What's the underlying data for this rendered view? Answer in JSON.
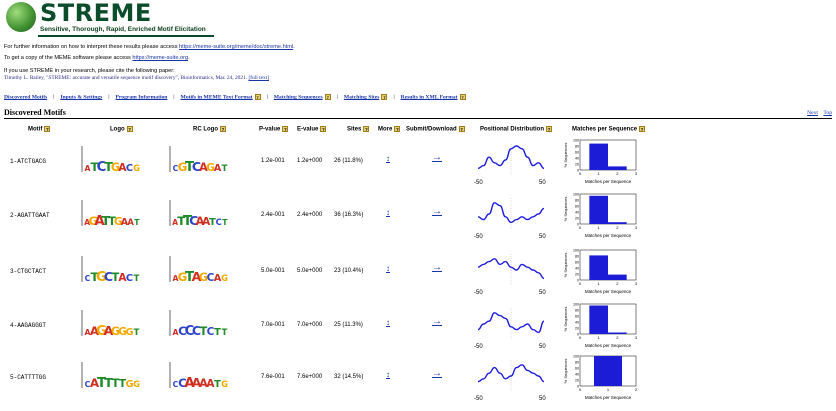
{
  "header": {
    "title": "STREME",
    "subtitle": "Sensitive, Thorough, Rapid, Enriched Motif Elicitation"
  },
  "info": {
    "line1_prefix": "For further information on how to interpret these results please access ",
    "line1_link": "https://meme-suite.org/meme/doc/streme.html",
    "line1_suffix": ".",
    "line2_prefix": "To get a copy of the MEME software please access ",
    "line2_link": "https://meme-suite.org",
    "line2_suffix": ".",
    "cite_intro": "If you use STREME in your research, please cite the following paper:",
    "cite_text": "Timothy L. Bailey, \"STREME: accurate and versatile sequence motif discovery\", Bioinformatics, Mar. 24, 2021.",
    "cite_link": "[full text]"
  },
  "nav": [
    "Discovered Motifs",
    "Inputs & Settings",
    "Program Information",
    "Motifs in MEME Text Format",
    "Matching Sequences",
    "Matching Sites",
    "Results in XML Format"
  ],
  "section": {
    "title": "Discovered Motifs",
    "next": "Next",
    "top": "Top"
  },
  "columns": {
    "motif": "Motif",
    "logo": "Logo",
    "rc_logo": "RC Logo",
    "pvalue": "P-value",
    "evalue": "E-value",
    "sites": "Sites",
    "more": "More",
    "submit": "Submit/Download",
    "posdist": "Positional Distribution",
    "matches": "Matches per Sequence"
  },
  "help_glyph": "?",
  "more_glyph": "↕",
  "submit_glyph": "→",
  "chart_labels": {
    "pos_left": "-50",
    "pos_right": "50",
    "hist_ylabel": "% Sequences",
    "hist_xlabel": "Matches per Sequence",
    "hist_yticks": [
      "100",
      "80",
      "60",
      "40",
      "20",
      "0"
    ]
  },
  "motifs": [
    {
      "id": "1-ATCTGACG",
      "logo_letters": "ATCTGACG",
      "rc_letters": "CGTCAGAT",
      "pvalue": "1.2e-001",
      "evalue": "1.2e+000",
      "sites": "26 (11.8%)",
      "pos_curve": [
        2,
        3,
        6,
        4,
        3,
        5,
        9,
        10,
        9,
        6,
        3,
        4,
        2
      ],
      "hist_x": [
        "0",
        "1",
        "2",
        "3"
      ],
      "hist_values": [
        88,
        12
      ]
    },
    {
      "id": "2-AGATTGAAT",
      "logo_letters": "AGATTGAAT",
      "rc_letters": "ATTCAATCT",
      "pvalue": "2.4e-001",
      "evalue": "2.4e+000",
      "sites": "36 (16.3%)",
      "pos_curve": [
        4,
        3,
        5,
        9,
        8,
        4,
        2,
        3,
        4,
        3,
        4,
        5,
        7
      ],
      "hist_x": [
        "0",
        "1",
        "2",
        "3"
      ],
      "hist_values": [
        94,
        6
      ]
    },
    {
      "id": "3-CTGCTACT",
      "logo_letters": "CTGCTACT",
      "rc_letters": "AGTAGCAG",
      "pvalue": "5.0e-001",
      "evalue": "5.0e+000",
      "sites": "23 (10.4%)",
      "pos_curve": [
        6,
        7,
        8,
        9,
        7,
        8,
        6,
        5,
        7,
        6,
        5,
        4,
        2
      ],
      "hist_x": [
        "0",
        "1",
        "2",
        "3"
      ],
      "hist_values": [
        82,
        18
      ]
    },
    {
      "id": "4-AAGAGGGT",
      "logo_letters": "AAGAGGGT",
      "rc_letters": "ACCCTCTT",
      "pvalue": "7.0e-001",
      "evalue": "7.0e+000",
      "sites": "25 (11.3%)",
      "pos_curve": [
        3,
        5,
        6,
        9,
        8,
        7,
        4,
        3,
        4,
        5,
        3,
        2,
        6
      ],
      "hist_x": [
        "0",
        "1",
        "2",
        "3"
      ],
      "hist_values": [
        95,
        5
      ]
    },
    {
      "id": "5-CATTTTGG",
      "logo_letters": "CATTTTGG",
      "rc_letters": "CCAAAATG",
      "pvalue": "7.6e-001",
      "evalue": "7.6e+000",
      "sites": "32 (14.5%)",
      "pos_curve": [
        3,
        4,
        6,
        8,
        6,
        4,
        5,
        8,
        9,
        7,
        6,
        5,
        3
      ],
      "hist_x": [
        "0",
        "1",
        "2"
      ],
      "hist_values": [
        100
      ]
    }
  ],
  "colors": {
    "link": "#1a33a5",
    "bar": "#1c1cd6",
    "curve": "#1c1ce0",
    "base_A": "#d12e22",
    "base_C": "#2f45c8",
    "base_G": "#f2a900",
    "base_T": "#1f8a2a",
    "brand_green": "#0b4d2a"
  }
}
